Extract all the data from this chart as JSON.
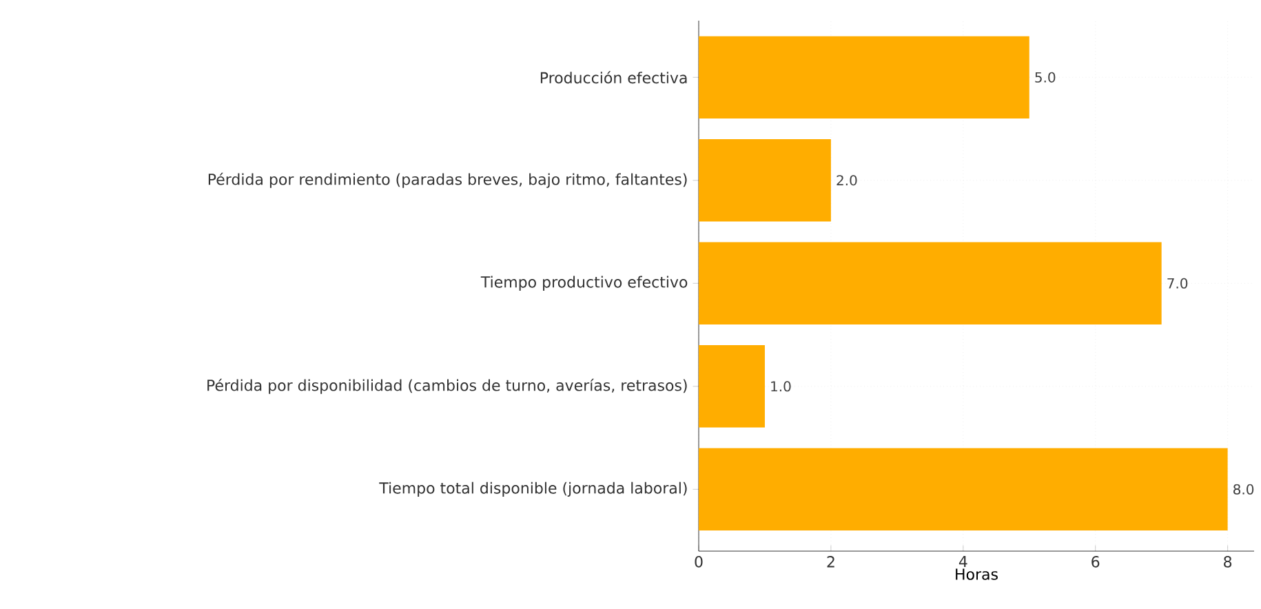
{
  "chart_data": {
    "type": "bar",
    "orientation": "horizontal",
    "xlabel": "Horas",
    "categories": [
      "Producción efectiva",
      "Pérdida por rendimiento (paradas breves, bajo ritmo, faltantes)",
      "Tiempo productivo efectivo",
      "Pérdida por disponibilidad (cambios de turno, averías, retrasos)",
      "Tiempo total disponible (jornada laboral)"
    ],
    "values": [
      5,
      2,
      7,
      1,
      8
    ],
    "value_labels": [
      "5.0",
      "2.0",
      "7.0",
      "1.0",
      "8.0"
    ],
    "color": "#ffad00",
    "xlim": [
      0,
      8.4
    ],
    "xticks": [
      0,
      2,
      4,
      6,
      8
    ],
    "grid": true
  }
}
